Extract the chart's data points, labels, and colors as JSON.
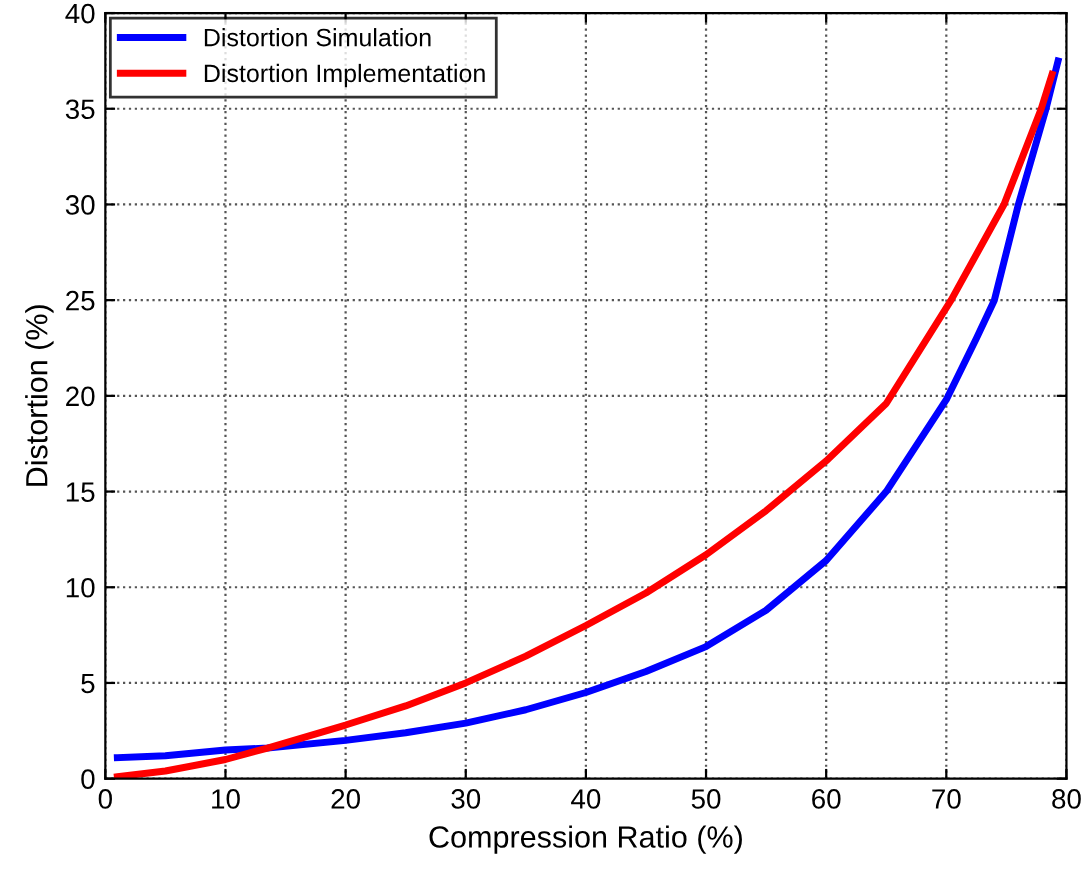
{
  "chart_data": {
    "type": "line",
    "xlabel": "Compression Ratio (%)",
    "ylabel": "Distortion (%)",
    "xlim": [
      0,
      80
    ],
    "ylim": [
      0,
      40
    ],
    "xticks": [
      0,
      10,
      20,
      30,
      40,
      50,
      60,
      70,
      80
    ],
    "yticks": [
      0,
      5,
      10,
      15,
      20,
      25,
      30,
      35,
      40
    ],
    "grid": true,
    "legend": "top left",
    "line_style": "solid",
    "series": [
      {
        "name": "Distortion Simulation",
        "color": "#0000ff",
        "x": [
          1,
          5,
          10,
          13.5,
          20,
          25,
          30,
          35,
          40,
          45,
          50,
          55,
          60,
          65,
          70,
          72.5,
          74,
          76,
          78.3,
          79.3
        ],
        "values": [
          1.1,
          1.2,
          1.5,
          1.6,
          2.0,
          2.4,
          2.9,
          3.6,
          4.5,
          5.6,
          6.9,
          8.8,
          11.4,
          15,
          19.8,
          23,
          25,
          30,
          35,
          37.5
        ]
      },
      {
        "name": "Distortion Implementation",
        "color": "#ff0000",
        "x": [
          1,
          5,
          10,
          13.5,
          20,
          25,
          30,
          35,
          40,
          45,
          50,
          55,
          60,
          65,
          70.4,
          74.8,
          77.9,
          78.8
        ],
        "values": [
          0.1,
          0.4,
          1.0,
          1.6,
          2.8,
          3.8,
          5.0,
          6.4,
          8.0,
          9.7,
          11.7,
          14.0,
          16.6,
          19.6,
          25,
          30,
          35,
          36.8
        ]
      }
    ]
  }
}
